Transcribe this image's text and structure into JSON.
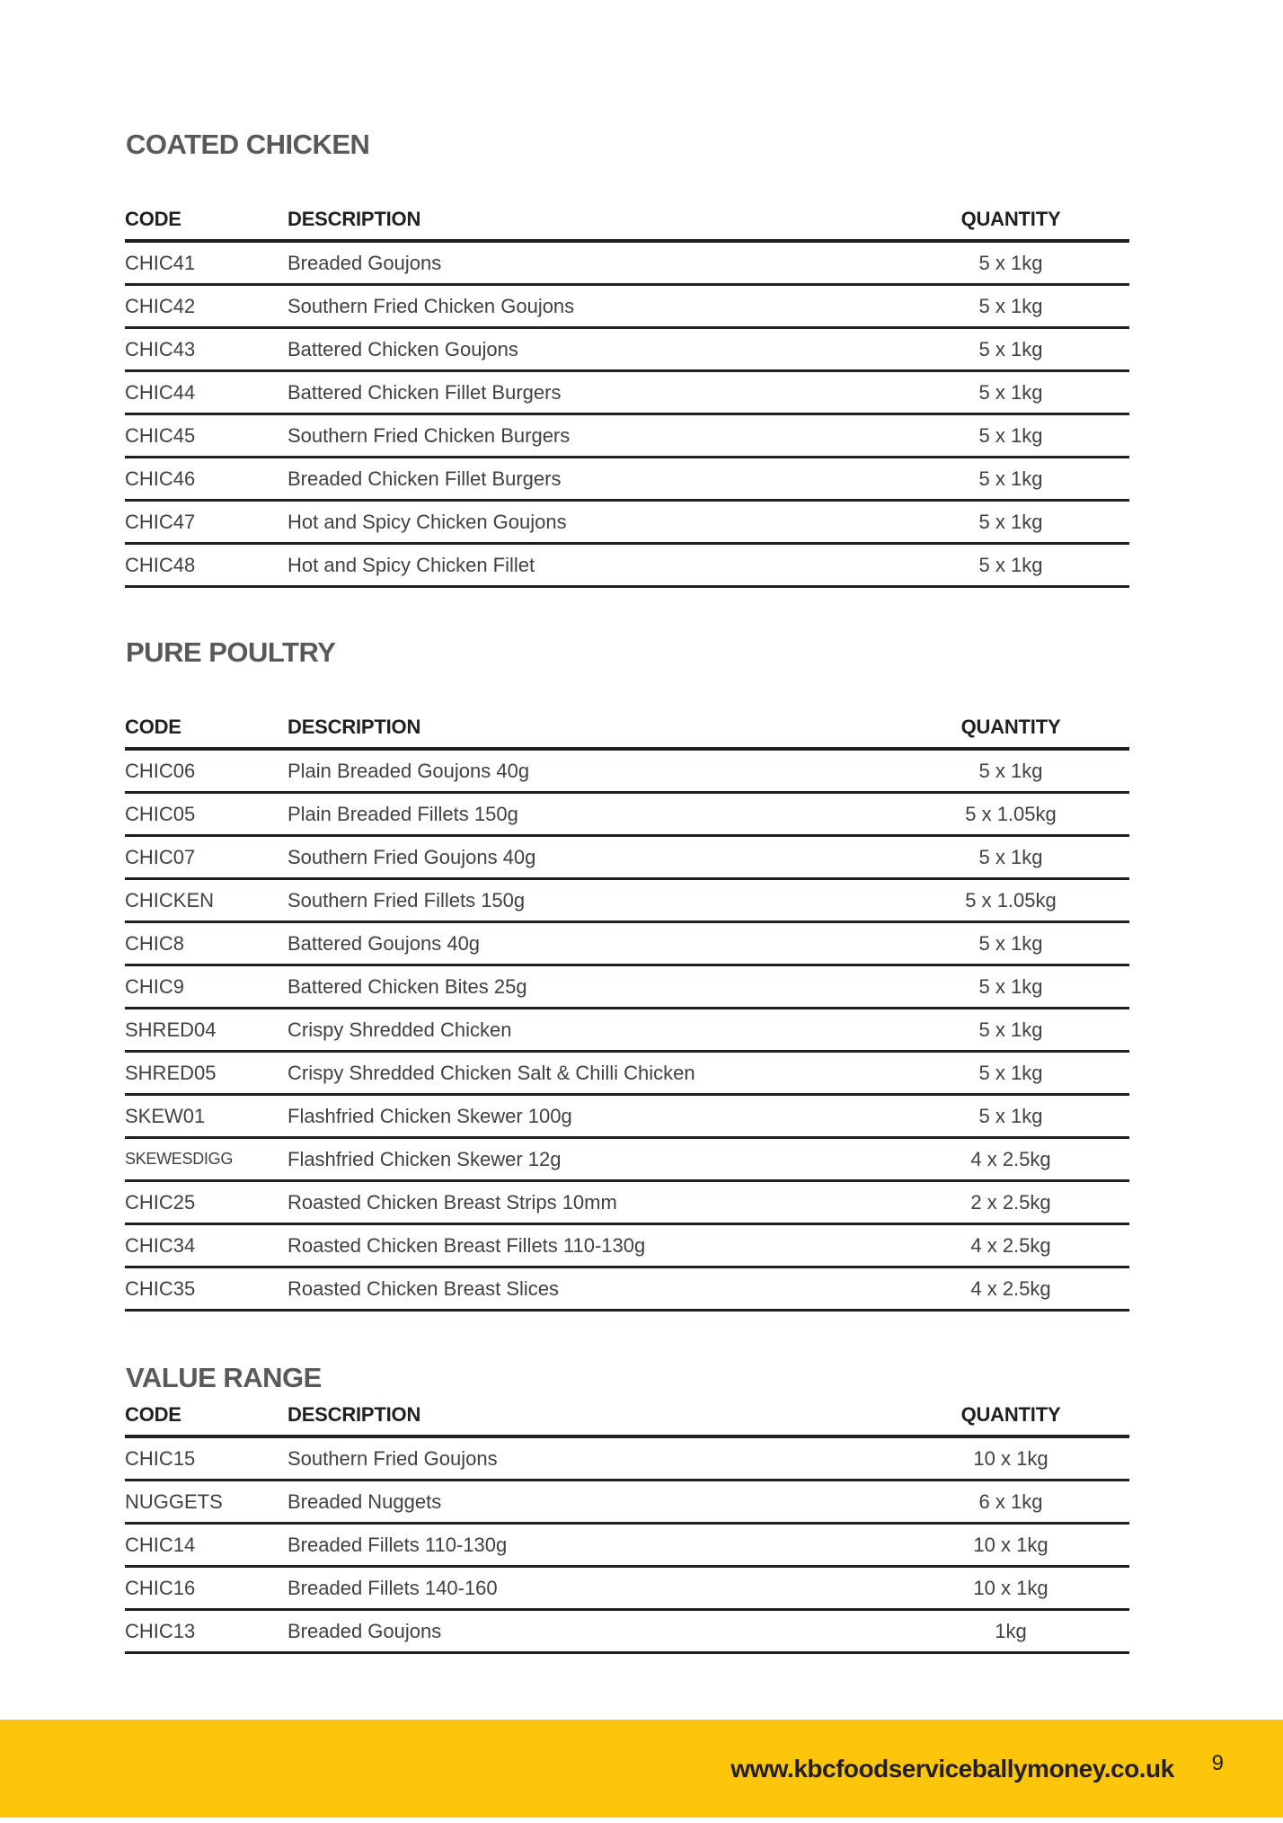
{
  "sections": [
    {
      "title": "COATED CHICKEN",
      "columns": [
        "CODE",
        "DESCRIPTION",
        "QUANTITY"
      ],
      "rows": [
        {
          "code": "CHIC41",
          "description": "Breaded Goujons",
          "quantity": "5 x 1kg"
        },
        {
          "code": "CHIC42",
          "description": "Southern Fried Chicken Goujons",
          "quantity": "5 x 1kg"
        },
        {
          "code": "CHIC43",
          "description": "Battered Chicken Goujons",
          "quantity": "5 x 1kg"
        },
        {
          "code": "CHIC44",
          "description": "Battered Chicken Fillet Burgers",
          "quantity": "5 x 1kg"
        },
        {
          "code": "CHIC45",
          "description": "Southern Fried Chicken Burgers",
          "quantity": "5 x 1kg"
        },
        {
          "code": "CHIC46",
          "description": "Breaded Chicken Fillet Burgers",
          "quantity": "5 x 1kg"
        },
        {
          "code": "CHIC47",
          "description": "Hot and Spicy Chicken Goujons",
          "quantity": "5 x 1kg"
        },
        {
          "code": "CHIC48",
          "description": "Hot and Spicy Chicken Fillet",
          "quantity": "5 x 1kg"
        }
      ]
    },
    {
      "title": "PURE POULTRY",
      "columns": [
        "CODE",
        "DESCRIPTION",
        "QUANTITY"
      ],
      "rows": [
        {
          "code": "CHIC06",
          "description": "Plain Breaded Goujons 40g",
          "quantity": "5 x 1kg"
        },
        {
          "code": "CHIC05",
          "description": "Plain Breaded Fillets 150g",
          "quantity": "5 x 1.05kg"
        },
        {
          "code": "CHIC07",
          "description": "Southern Fried Goujons 40g",
          "quantity": "5 x 1kg"
        },
        {
          "code": "CHICKEN",
          "description": "Southern Fried Fillets 150g",
          "quantity": "5 x 1.05kg"
        },
        {
          "code": "CHIC8",
          "description": "Battered Goujons 40g",
          "quantity": "5 x 1kg"
        },
        {
          "code": "CHIC9",
          "description": "Battered Chicken Bites 25g",
          "quantity": "5 x 1kg"
        },
        {
          "code": "SHRED04",
          "description": "Crispy Shredded Chicken",
          "quantity": "5 x 1kg"
        },
        {
          "code": "SHRED05",
          "description": "Crispy Shredded Chicken Salt & Chilli Chicken",
          "quantity": "5 x 1kg"
        },
        {
          "code": "SKEW01",
          "description": "Flashfried Chicken Skewer 100g",
          "quantity": "5 x 1kg"
        },
        {
          "code": "SKEWESDIGG",
          "code_small": true,
          "description": "Flashfried Chicken Skewer 12g",
          "quantity": "4 x 2.5kg"
        },
        {
          "code": "CHIC25",
          "description": "Roasted Chicken Breast Strips 10mm",
          "quantity": "2 x 2.5kg"
        },
        {
          "code": "CHIC34",
          "description": "Roasted Chicken Breast Fillets 110-130g",
          "quantity": "4 x 2.5kg"
        },
        {
          "code": "CHIC35",
          "description": "Roasted Chicken Breast Slices",
          "quantity": "4 x 2.5kg"
        }
      ]
    },
    {
      "title": "VALUE RANGE",
      "columns": [
        "CODE",
        "DESCRIPTION",
        "QUANTITY"
      ],
      "rows": [
        {
          "code": "CHIC15",
          "description": "Southern Fried Goujons",
          "quantity": "10 x 1kg"
        },
        {
          "code": "NUGGETS",
          "description": "Breaded Nuggets",
          "quantity": "6 x 1kg"
        },
        {
          "code": "CHIC14",
          "description": "Breaded Fillets 110-130g",
          "quantity": "10 x 1kg"
        },
        {
          "code": "CHIC16",
          "description": "Breaded Fillets 140-160",
          "quantity": "10 x 1kg"
        },
        {
          "code": "CHIC13",
          "description": "Breaded Goujons",
          "quantity": "1kg"
        }
      ]
    }
  ],
  "footer": {
    "website": "www.kbcfoodserviceballymoney.co.uk",
    "page_number": "9",
    "bar_color": "#fdc60a"
  }
}
